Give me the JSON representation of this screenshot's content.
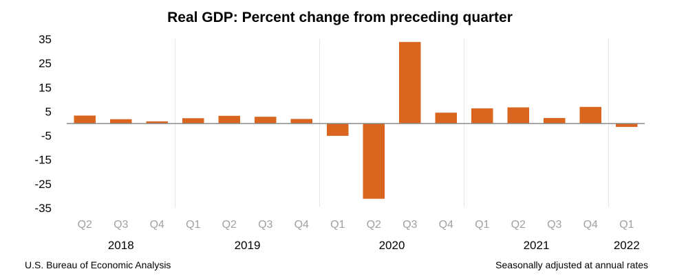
{
  "chart_data": {
    "type": "bar",
    "title": "Real GDP:  Percent change from preceding quarter",
    "xlabel": "",
    "ylabel": "",
    "ylim": [
      -35,
      35
    ],
    "yticks": [
      "35",
      "25",
      "15",
      "5",
      "-5",
      "-15",
      "-25",
      "-35"
    ],
    "categories": [
      "Q2",
      "Q3",
      "Q4",
      "Q1",
      "Q2",
      "Q3",
      "Q4",
      "Q1",
      "Q2",
      "Q3",
      "Q4",
      "Q1",
      "Q2",
      "Q3",
      "Q4",
      "Q1"
    ],
    "values": [
      3.3,
      1.8,
      0.9,
      2.2,
      3.2,
      2.8,
      1.9,
      -5.1,
      -31.2,
      33.8,
      4.5,
      6.3,
      6.7,
      2.3,
      6.9,
      -1.4
    ],
    "years": [
      {
        "label": "2018",
        "first": 0,
        "last": 2
      },
      {
        "label": "2019",
        "first": 3,
        "last": 6
      },
      {
        "label": "2020",
        "first": 7,
        "last": 10
      },
      {
        "label": "2021",
        "first": 11,
        "last": 14
      },
      {
        "label": "2022",
        "first": 15,
        "last": 15
      }
    ],
    "bar_color": "#d9651e",
    "grid": false
  },
  "footer": {
    "source": "U.S. Bureau of Economic Analysis",
    "note": "Seasonally adjusted at annual rates"
  }
}
